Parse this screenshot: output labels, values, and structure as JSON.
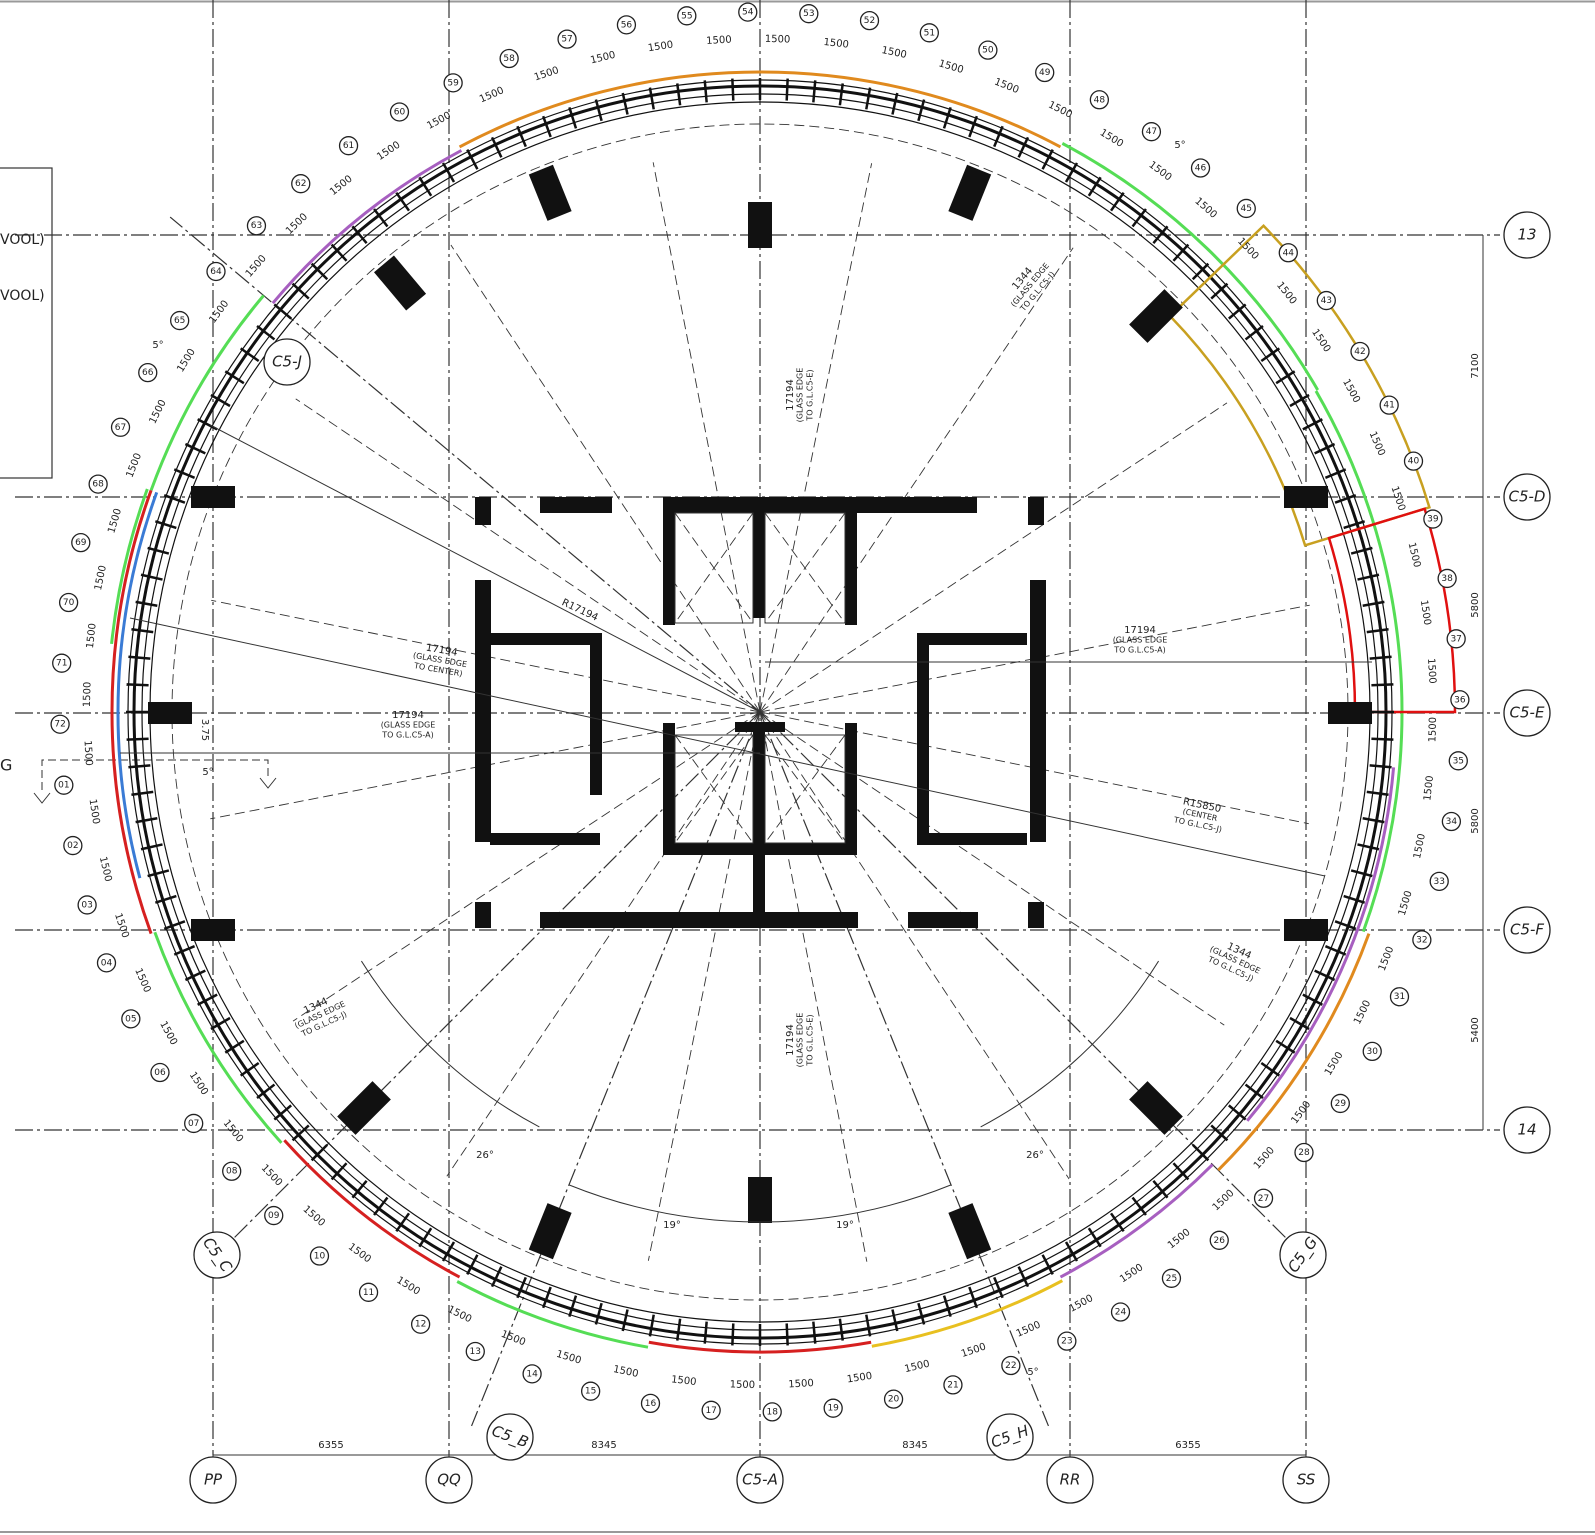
{
  "legend": {
    "line1": "VOOL)",
    "line2": "VOOL)"
  },
  "section_mark": "G",
  "grid": {
    "columns": [
      "PP",
      "QQ",
      "C5-A",
      "RR",
      "SS"
    ],
    "rows": [
      "13",
      "C5-D",
      "C5-E",
      "C5-F",
      "14"
    ],
    "radial": [
      "C5-J",
      "C5_C",
      "C5_B",
      "C5_H",
      "C5_G"
    ]
  },
  "dimensions": {
    "bottom": [
      "6355",
      "8345",
      "8345",
      "6355"
    ],
    "right": [
      "7100",
      "5800",
      "5800",
      "5400"
    ]
  },
  "annotations": [
    {
      "lines": [
        "17194",
        "(GLASS EDGE",
        "TO G.L.C5-E)"
      ]
    },
    {
      "lines": [
        "17194",
        "(GLASS EDGE",
        "TO G.L.C5-E)"
      ]
    },
    {
      "lines": [
        "17194",
        "(GLASS EDGE",
        "TO G.L.C5-A)"
      ]
    },
    {
      "lines": [
        "17194",
        "(GLASS EDGE",
        "TO G.L.C5-A)"
      ]
    },
    {
      "lines": [
        "17194",
        "(GLASS EDGE",
        "TO CENTER)"
      ]
    },
    {
      "lines": [
        "R17194"
      ]
    },
    {
      "lines": [
        "R15850",
        "(CENTER",
        "TO G.L.C5-J)"
      ]
    },
    {
      "lines": [
        "1344",
        "(GLASS EDGE",
        "TO G.L.C5-J)"
      ]
    },
    {
      "lines": [
        "1344",
        "(GLASS EDGE",
        "TO G.L.C5-J)"
      ]
    },
    {
      "lines": [
        "1344",
        "(GLASS EDGE",
        "TO G.L.C5-J)"
      ]
    },
    {
      "lines": [
        "3.75"
      ]
    }
  ],
  "angles": [
    "26°",
    "26°",
    "19°",
    "19°",
    "5°",
    "5°",
    "5°",
    "5°"
  ],
  "panels": [
    {
      "number": "01",
      "width": "1500"
    },
    {
      "number": "02",
      "width": "1500"
    },
    {
      "number": "03",
      "width": "1500"
    },
    {
      "number": "04",
      "width": "1500"
    },
    {
      "number": "05",
      "width": "1500"
    },
    {
      "number": "06",
      "width": "1500"
    },
    {
      "number": "07",
      "width": "1500"
    },
    {
      "number": "08",
      "width": "1500"
    },
    {
      "number": "09",
      "width": "1500"
    },
    {
      "number": "10",
      "width": "1500"
    },
    {
      "number": "11",
      "width": "1500"
    },
    {
      "number": "12",
      "width": "1500"
    },
    {
      "number": "13",
      "width": "1500"
    },
    {
      "number": "14",
      "width": "1500"
    },
    {
      "number": "15",
      "width": "1500"
    },
    {
      "number": "16",
      "width": "1500"
    },
    {
      "number": "17",
      "width": "1500"
    },
    {
      "number": "18",
      "width": "1500"
    },
    {
      "number": "19",
      "width": "1500"
    },
    {
      "number": "20",
      "width": "1500"
    },
    {
      "number": "21",
      "width": "1500"
    },
    {
      "number": "22",
      "width": "1500"
    },
    {
      "number": "23",
      "width": "1500"
    },
    {
      "number": "24",
      "width": "1500"
    },
    {
      "number": "25",
      "width": "1500"
    },
    {
      "number": "26",
      "width": "1500"
    },
    {
      "number": "27",
      "width": "1500"
    },
    {
      "number": "28",
      "width": "1500"
    },
    {
      "number": "29",
      "width": "1500"
    },
    {
      "number": "30",
      "width": "1500"
    },
    {
      "number": "31",
      "width": "1500"
    },
    {
      "number": "32",
      "width": "1500"
    },
    {
      "number": "33",
      "width": "1500"
    },
    {
      "number": "34",
      "width": "1500"
    },
    {
      "number": "35",
      "width": "1500"
    },
    {
      "number": "36",
      "width": "1500"
    },
    {
      "number": "37",
      "width": "1500"
    },
    {
      "number": "38",
      "width": "1500"
    },
    {
      "number": "39",
      "width": "1500"
    },
    {
      "number": "40",
      "width": "1500"
    },
    {
      "number": "41",
      "width": "1500"
    },
    {
      "number": "42",
      "width": "1500"
    },
    {
      "number": "43",
      "width": "1500"
    },
    {
      "number": "44",
      "width": "1500"
    },
    {
      "number": "45",
      "width": "1500"
    },
    {
      "number": "46",
      "width": "1500"
    },
    {
      "number": "47",
      "width": "1500"
    },
    {
      "number": "48",
      "width": "1500"
    },
    {
      "number": "49",
      "width": "1500"
    },
    {
      "number": "50",
      "width": "1500"
    },
    {
      "number": "51",
      "width": "1500"
    },
    {
      "number": "52",
      "width": "1500"
    },
    {
      "number": "53",
      "width": "1500"
    },
    {
      "number": "54",
      "width": "1500"
    },
    {
      "number": "55",
      "width": "1500"
    },
    {
      "number": "56",
      "width": "1500"
    },
    {
      "number": "57",
      "width": "1500"
    },
    {
      "number": "58",
      "width": "1500"
    },
    {
      "number": "59",
      "width": "1500"
    },
    {
      "number": "60",
      "width": "1500"
    },
    {
      "number": "61",
      "width": "1500"
    },
    {
      "number": "62",
      "width": "1500"
    },
    {
      "number": "63",
      "width": "1500"
    },
    {
      "number": "64",
      "width": "1500"
    },
    {
      "number": "65",
      "width": "1500"
    },
    {
      "number": "66",
      "width": "1500"
    },
    {
      "number": "67",
      "width": "1500"
    },
    {
      "number": "68",
      "width": "1500"
    },
    {
      "number": "69",
      "width": "1500"
    },
    {
      "number": "70",
      "width": "1500"
    },
    {
      "number": "71",
      "width": "1500"
    },
    {
      "number": "72",
      "width": "1500"
    }
  ]
}
